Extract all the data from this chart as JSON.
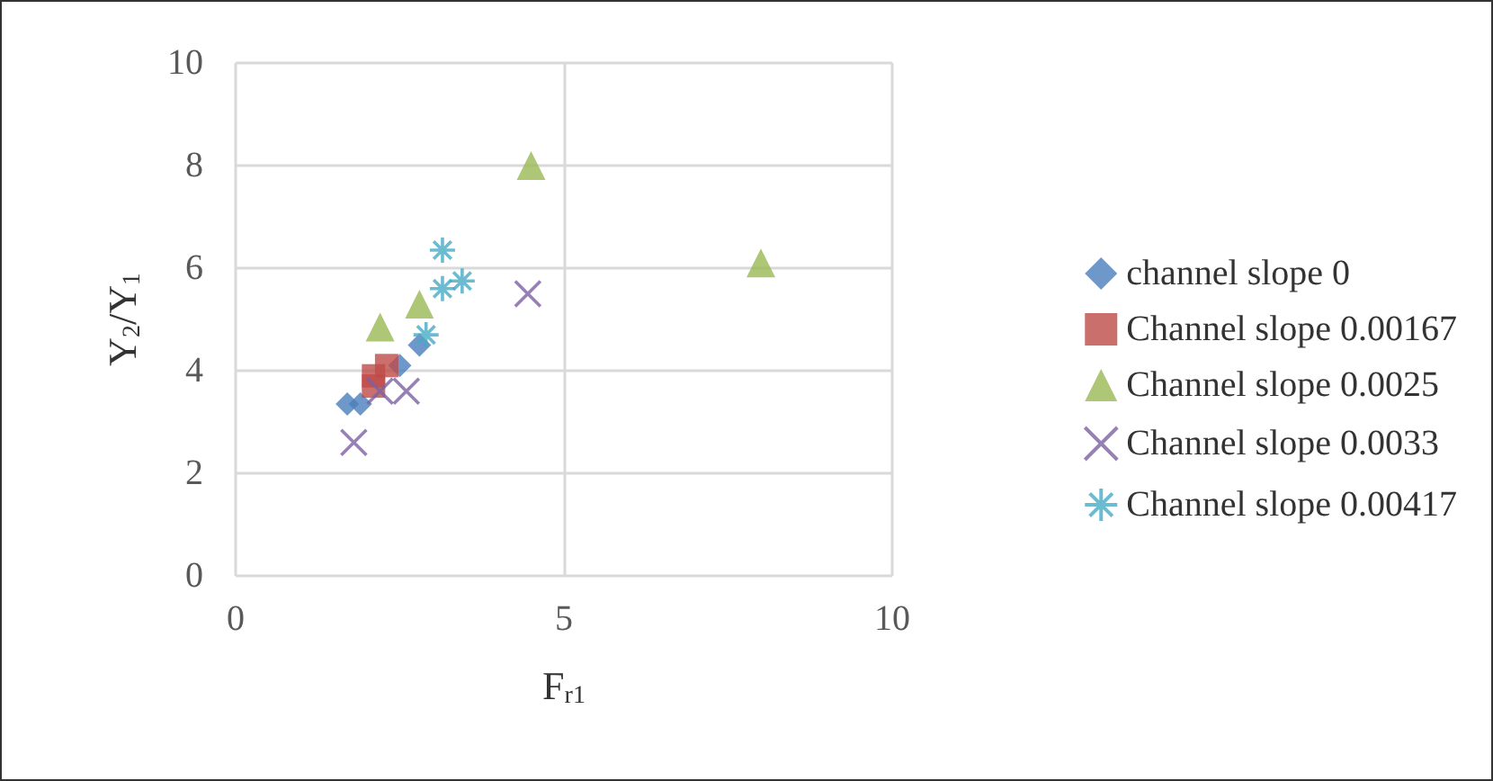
{
  "chart_data": {
    "type": "scatter",
    "xlabel": "F$_{r1}$",
    "ylabel": "Y$_{2}$/Y$_{1}$",
    "xlim": [
      0,
      10
    ],
    "xticks": [
      0,
      5,
      10
    ],
    "ylim": [
      0,
      10
    ],
    "yticks": [
      0,
      2,
      4,
      6,
      8,
      10
    ],
    "grid": true,
    "legend": "right",
    "series": [
      {
        "name": "channel slope 0",
        "color": "#4a7ebb",
        "marker": "diamond",
        "x": [
          1.7,
          1.9,
          2.5,
          2.8
        ],
        "values": [
          3.35,
          3.35,
          4.1,
          4.5
        ]
      },
      {
        "name": "Channel slope 0.00167",
        "color": "#be4b48",
        "marker": "square",
        "x": [
          2.1,
          2.1,
          2.3
        ],
        "values": [
          3.7,
          3.9,
          4.1
        ]
      },
      {
        "name": "Channel slope 0.0025",
        "color": "#98b954",
        "marker": "triangle",
        "x": [
          2.2,
          2.8,
          4.5,
          8.0
        ],
        "values": [
          4.85,
          5.3,
          8.0,
          6.1
        ]
      },
      {
        "name": "Channel slope 0.0033",
        "color": "#7d60a0",
        "marker": "cross",
        "x": [
          1.8,
          2.2,
          2.6,
          4.45
        ],
        "values": [
          2.6,
          3.6,
          3.6,
          5.5
        ]
      },
      {
        "name": "Channel slope 0.00417",
        "color": "#46aac5",
        "x": [
          2.9,
          3.15,
          3.15,
          3.45
        ],
        "values": [
          4.7,
          5.6,
          6.35,
          5.75
        ]
      }
    ]
  }
}
